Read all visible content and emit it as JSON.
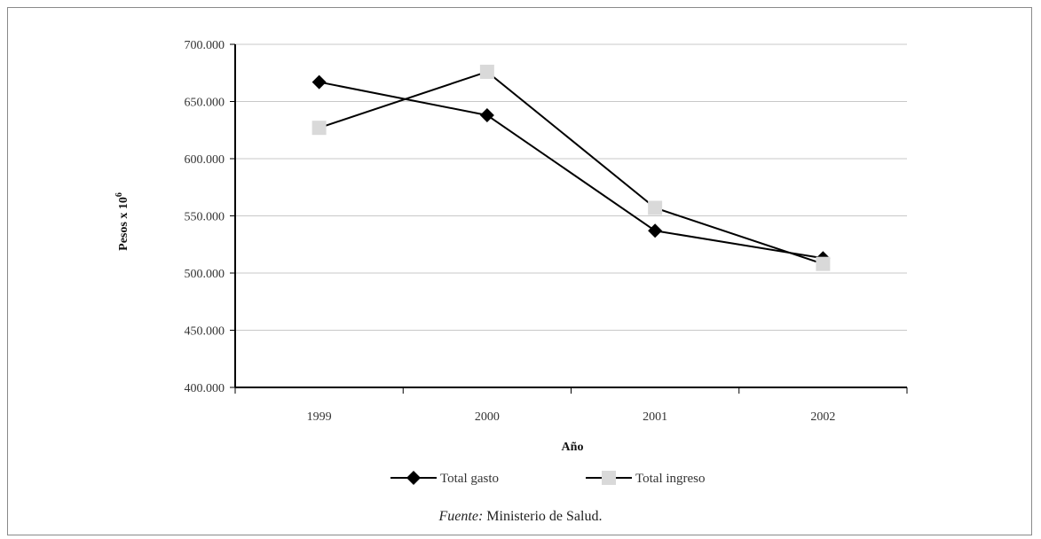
{
  "chart_data": {
    "type": "line",
    "categories": [
      "1999",
      "2000",
      "2001",
      "2002"
    ],
    "series": [
      {
        "name": "Total gasto",
        "values": [
          667000,
          638000,
          537000,
          513000
        ],
        "marker": "diamond",
        "color": "#000000"
      },
      {
        "name": "Total ingreso",
        "values": [
          627000,
          676000,
          557000,
          508000
        ],
        "marker": "square",
        "color": "#d9d9d9"
      }
    ],
    "xlabel": "Año",
    "ylabel_main": "Pesos x 10",
    "ylabel_exp": "6",
    "ylim": [
      400000,
      700000
    ],
    "yticks": [
      "400.000",
      "450.000",
      "500.000",
      "550.000",
      "600.000",
      "650.000",
      "700.000"
    ],
    "grid": true,
    "legend_position": "bottom"
  },
  "source": {
    "label": "Fuente:",
    "text": " Ministerio de Salud."
  }
}
